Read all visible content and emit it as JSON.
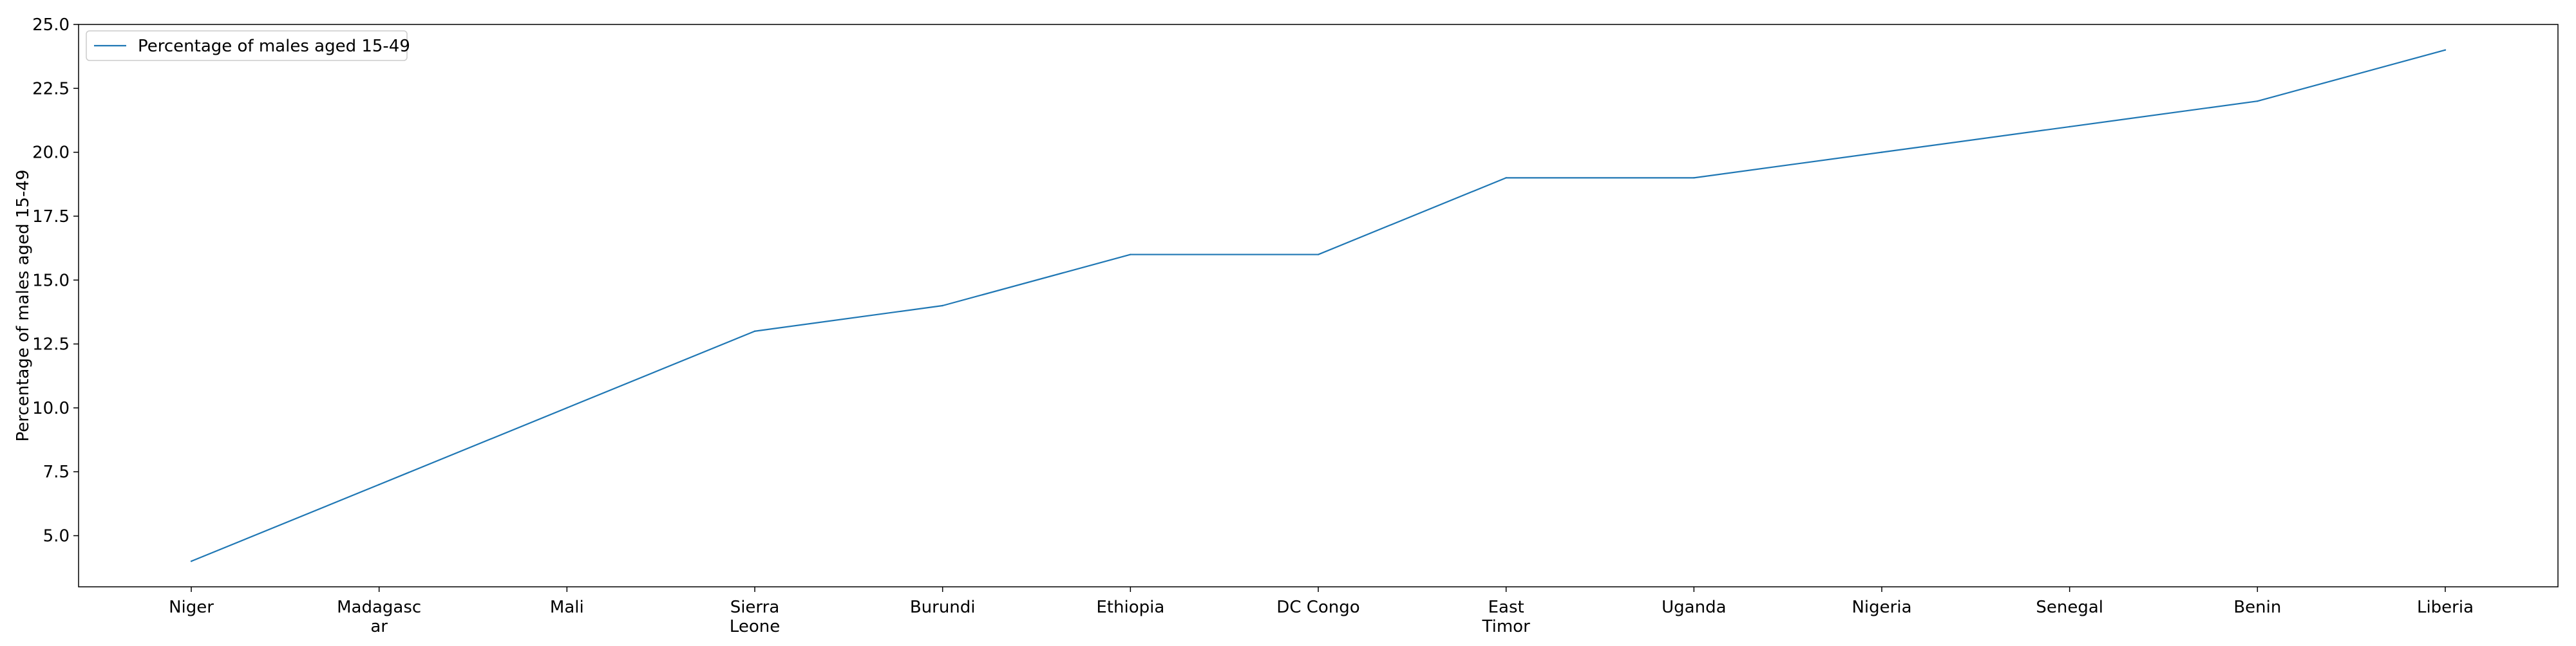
{
  "chart_data": {
    "type": "line",
    "title": "",
    "xlabel": "",
    "ylabel": "Percentage of males aged 15-49",
    "categories": [
      "Niger",
      "Madagascar",
      "Mali",
      "Sierra Leone",
      "Burundi",
      "Ethiopia",
      "DC Congo",
      "East Timor",
      "Uganda",
      "Nigeria",
      "Senegal",
      "Benin",
      "Liberia"
    ],
    "category_tick_labels": [
      [
        "Niger"
      ],
      [
        "Madagasc",
        "ar"
      ],
      [
        "Mali"
      ],
      [
        "Sierra",
        "Leone"
      ],
      [
        "Burundi"
      ],
      [
        "Ethiopia"
      ],
      [
        "DC Congo"
      ],
      [
        "East",
        "Timor"
      ],
      [
        "Uganda"
      ],
      [
        "Nigeria"
      ],
      [
        "Senegal"
      ],
      [
        "Benin"
      ],
      [
        "Liberia"
      ]
    ],
    "series": [
      {
        "name": "Percentage of males aged 15-49",
        "color": "#1f77b4",
        "values": [
          4,
          7,
          10,
          13,
          14,
          16,
          16,
          19,
          19,
          20,
          21,
          22,
          24
        ]
      }
    ],
    "ylim": [
      3,
      25
    ],
    "yticks": [
      5.0,
      7.5,
      10.0,
      12.5,
      15.0,
      17.5,
      20.0,
      22.5,
      25.0
    ],
    "ytick_labels": [
      "5.0",
      "7.5",
      "10.0",
      "12.5",
      "15.0",
      "17.5",
      "20.0",
      "22.5",
      "25.0"
    ],
    "grid": false,
    "legend_position": "top-left"
  }
}
